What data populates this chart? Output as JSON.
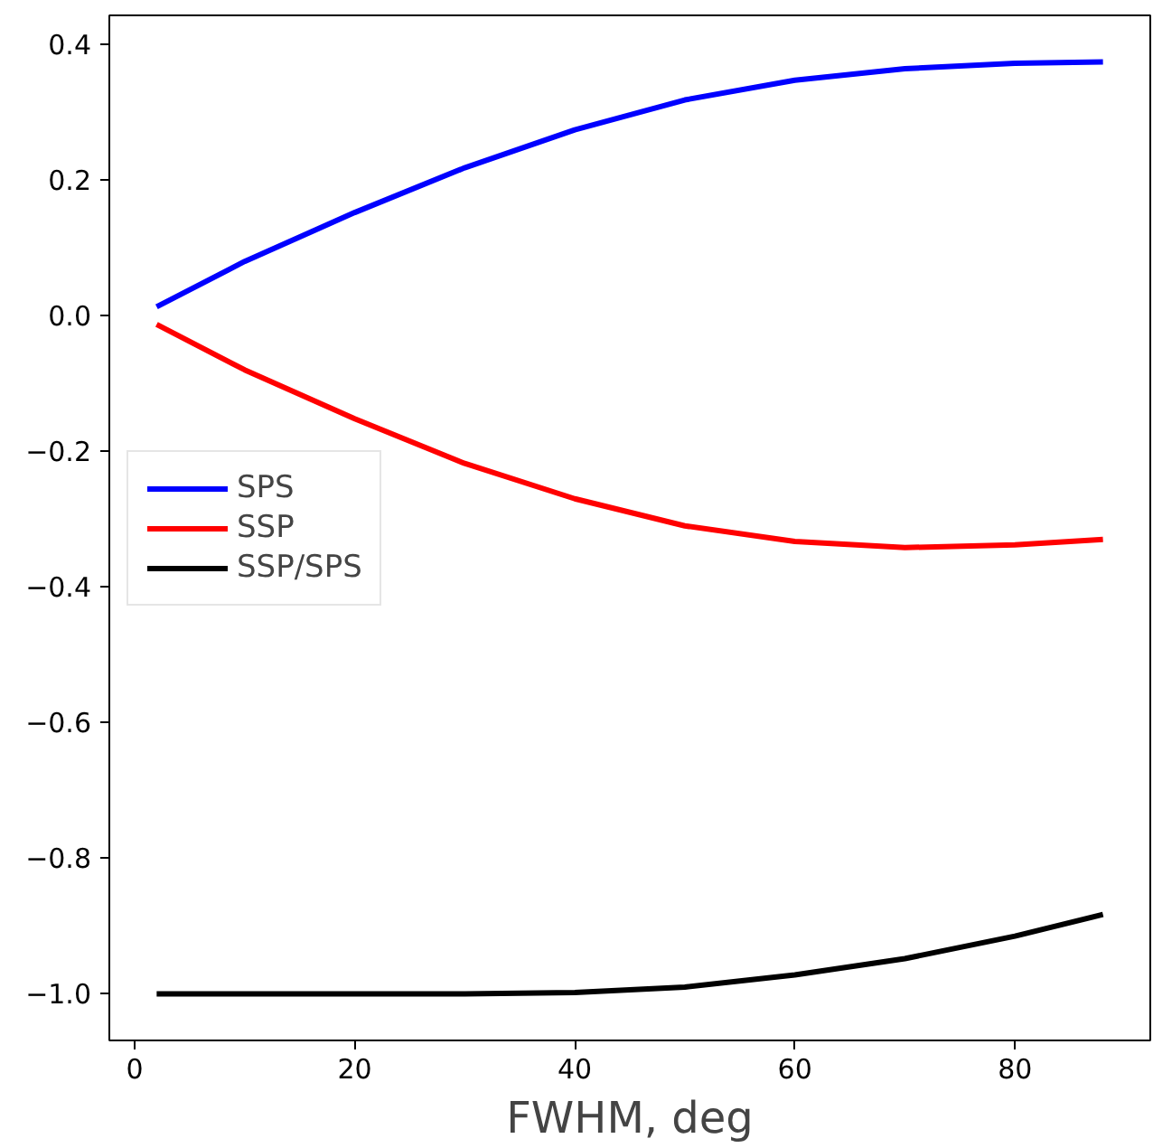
{
  "chart_data": {
    "type": "line",
    "xlabel": "FWHM, deg",
    "x": [
      2,
      10,
      20,
      30,
      40,
      50,
      60,
      70,
      80,
      88
    ],
    "series": [
      {
        "name": "SPS",
        "color": "#0000ff",
        "values": [
          0.013,
          0.08,
          0.152,
          0.218,
          0.274,
          0.318,
          0.347,
          0.364,
          0.372,
          0.374
        ]
      },
      {
        "name": "SSP",
        "color": "#ff0000",
        "values": [
          -0.013,
          -0.08,
          -0.152,
          -0.218,
          -0.27,
          -0.31,
          -0.333,
          -0.342,
          -0.338,
          -0.33
        ]
      },
      {
        "name": "SSP/SPS",
        "color": "#000000",
        "values": [
          -1.0,
          -1.0,
          -1.0,
          -1.0,
          -0.998,
          -0.99,
          -0.972,
          -0.948,
          -0.915,
          -0.883
        ]
      }
    ],
    "xlim": [
      -2.3,
      92.3
    ],
    "ylim": [
      -1.0687,
      0.4427
    ],
    "xticks": [
      0,
      20,
      40,
      60,
      80
    ],
    "yticks": [
      {
        "value": -1.0,
        "label": "−1.0"
      },
      {
        "value": -0.8,
        "label": "−0.8"
      },
      {
        "value": -0.6,
        "label": "−0.6"
      },
      {
        "value": -0.4,
        "label": "−0.4"
      },
      {
        "value": -0.2,
        "label": "−0.2"
      },
      {
        "value": 0.0,
        "label": "0.0"
      },
      {
        "value": 0.2,
        "label": "0.2"
      },
      {
        "value": 0.4,
        "label": "0.4"
      }
    ],
    "grid": false,
    "legend": "left",
    "line_style": "solid",
    "marker": "none"
  }
}
